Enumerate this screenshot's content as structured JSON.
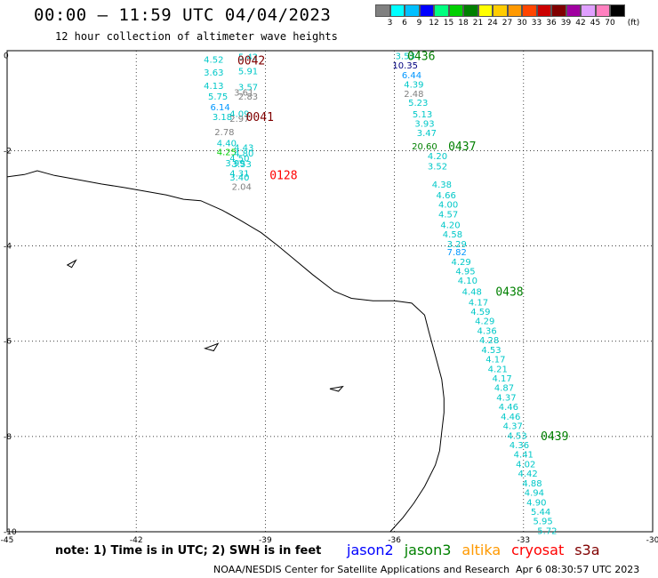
{
  "title": "00:00 – 11:59 UTC 04/04/2023",
  "subtitle": "12 hour collection of altimeter wave heights",
  "colorbar": {
    "unit": "(ft)",
    "labels": [
      "3",
      "6",
      "9",
      "12",
      "15",
      "18",
      "21",
      "24",
      "27",
      "30",
      "33",
      "36",
      "39",
      "42",
      "45",
      "70"
    ],
    "colors": [
      "#808080",
      "#00ffff",
      "#00bfff",
      "#0000ff",
      "#00ff7f",
      "#00d000",
      "#008000",
      "#ffff00",
      "#ffcc00",
      "#ff9900",
      "#ff4500",
      "#cc0000",
      "#800000",
      "#a000a0",
      "#e0a0ff",
      "#ff80c0",
      "#000000"
    ]
  },
  "axes": {
    "lon_labels": [
      "-45",
      "-42",
      "-39",
      "-36",
      "-33",
      "-30"
    ],
    "lat_labels": [
      "0",
      "-2",
      "-4",
      "-6",
      "-8",
      "-10"
    ],
    "lon_range": [
      -45,
      -30
    ],
    "lat_range": [
      -10,
      0.1
    ]
  },
  "chart_data": {
    "type": "scatter",
    "passes": [
      {
        "label": "0042",
        "label_color": "#800000",
        "label_at": [
          -39.65,
          -0.1
        ],
        "points": [
          {
            "lon": -40.2,
            "lat": -0.08,
            "v": "4.52",
            "c": "#00c8c8"
          },
          {
            "lon": -39.4,
            "lat": -0.02,
            "v": "5.42",
            "c": "#00c8c8"
          },
          {
            "lon": -40.2,
            "lat": -0.35,
            "v": "3.63",
            "c": "#00c8c8"
          },
          {
            "lon": -39.4,
            "lat": -0.32,
            "v": "5.91",
            "c": "#00c8c8"
          },
          {
            "lon": -40.2,
            "lat": -0.63,
            "v": "4.13",
            "c": "#00c8c8"
          },
          {
            "lon": -39.4,
            "lat": -0.66,
            "v": "3.57",
            "c": "#00c8c8"
          },
          {
            "lon": -39.5,
            "lat": -0.77,
            "v": "3.61",
            "c": "#808080"
          },
          {
            "lon": -39.4,
            "lat": -0.85,
            "v": "2.83",
            "c": "#808080"
          },
          {
            "lon": -40.1,
            "lat": -0.85,
            "v": "5.75",
            "c": "#00c8c8"
          },
          {
            "lon": -40.05,
            "lat": -1.08,
            "v": "6.14",
            "c": "#0096ff"
          },
          {
            "lon": -39.6,
            "lat": -1.22,
            "v": "4.09",
            "c": "#00c8c8"
          },
          {
            "lon": -40.0,
            "lat": -1.28,
            "v": "3.18",
            "c": "#00c8c8"
          },
          {
            "lon": -39.6,
            "lat": -1.32,
            "v": "2.97",
            "c": "#808080"
          }
        ]
      },
      {
        "label": "0041",
        "label_color": "#800000",
        "label_at": [
          -39.45,
          -1.28
        ],
        "points": [
          {
            "lon": -39.95,
            "lat": -1.6,
            "v": "2.78",
            "c": "#808080"
          },
          {
            "lon": -39.9,
            "lat": -1.83,
            "v": "4.40",
            "c": "#00c8c8"
          },
          {
            "lon": -39.5,
            "lat": -1.93,
            "v": "4.43",
            "c": "#00c8c8"
          },
          {
            "lon": -39.9,
            "lat": -2.02,
            "v": "4.25",
            "c": "#00d000"
          },
          {
            "lon": -39.5,
            "lat": -2.05,
            "v": "4.80",
            "c": "#00c8c8"
          },
          {
            "lon": -39.6,
            "lat": -2.15,
            "v": "4.50",
            "c": "#00c8c8"
          },
          {
            "lon": -39.7,
            "lat": -2.25,
            "v": "3.99",
            "c": "#00c8c8"
          },
          {
            "lon": -39.55,
            "lat": -2.27,
            "v": "3.53",
            "c": "#00c8c8"
          }
        ]
      },
      {
        "label": "0128",
        "label_color": "#ff0000",
        "label_at": [
          -38.9,
          -2.5
        ],
        "points": [
          {
            "lon": -39.6,
            "lat": -2.47,
            "v": "4.31",
            "c": "#00c8c8"
          },
          {
            "lon": -39.6,
            "lat": -2.55,
            "v": "3.40",
            "c": "#00c8c8"
          },
          {
            "lon": -39.55,
            "lat": -2.75,
            "v": "2.04",
            "c": "#808080"
          }
        ]
      },
      {
        "label": "0436",
        "label_color": "#008000",
        "label_at": [
          -35.7,
          0.0
        ],
        "points": [
          {
            "lon": -35.75,
            "lat": -0.0,
            "v": "3.53",
            "c": "#00c8c8"
          },
          {
            "lon": -35.75,
            "lat": -0.2,
            "v": "10.35",
            "c": "#00007f"
          },
          {
            "lon": -35.6,
            "lat": -0.4,
            "v": "6.44",
            "c": "#0096ff"
          },
          {
            "lon": -35.55,
            "lat": -0.6,
            "v": "4.39",
            "c": "#00c8c8"
          },
          {
            "lon": -35.55,
            "lat": -0.8,
            "v": "2.48",
            "c": "#808080"
          },
          {
            "lon": -35.45,
            "lat": -0.98,
            "v": "5.23",
            "c": "#00c8c8"
          },
          {
            "lon": -35.35,
            "lat": -1.23,
            "v": "5.13",
            "c": "#00c8c8"
          },
          {
            "lon": -35.3,
            "lat": -1.42,
            "v": "3.93",
            "c": "#00c8c8"
          },
          {
            "lon": -35.25,
            "lat": -1.62,
            "v": "3.47",
            "c": "#00c8c8"
          }
        ]
      },
      {
        "label": "0437",
        "label_color": "#008000",
        "label_at": [
          -34.75,
          -1.9
        ],
        "points": [
          {
            "lon": -35.3,
            "lat": -1.9,
            "v": "20.60",
            "c": "#008000"
          },
          {
            "lon": -35.0,
            "lat": -2.1,
            "v": "4.20",
            "c": "#00c8c8"
          },
          {
            "lon": -35.0,
            "lat": -2.32,
            "v": "3.52",
            "c": "#00c8c8"
          },
          {
            "lon": -34.9,
            "lat": -2.7,
            "v": "4.38",
            "c": "#00c8c8"
          },
          {
            "lon": -34.8,
            "lat": -2.92,
            "v": "4.66",
            "c": "#00c8c8"
          },
          {
            "lon": -34.75,
            "lat": -3.12,
            "v": "4.00",
            "c": "#00c8c8"
          },
          {
            "lon": -34.75,
            "lat": -3.33,
            "v": "4.57",
            "c": "#00c8c8"
          },
          {
            "lon": -34.7,
            "lat": -3.55,
            "v": "4.20",
            "c": "#00c8c8"
          },
          {
            "lon": -34.65,
            "lat": -3.75,
            "v": "4.58",
            "c": "#00c8c8"
          },
          {
            "lon": -34.55,
            "lat": -3.95,
            "v": "3.29",
            "c": "#00c8c8"
          },
          {
            "lon": -34.55,
            "lat": -4.12,
            "v": "7.82",
            "c": "#0096ff"
          },
          {
            "lon": -34.45,
            "lat": -4.32,
            "v": "4.29",
            "c": "#00c8c8"
          },
          {
            "lon": -34.35,
            "lat": -4.52,
            "v": "4.95",
            "c": "#00c8c8"
          },
          {
            "lon": -34.3,
            "lat": -4.72,
            "v": "4.10",
            "c": "#00c8c8"
          }
        ]
      },
      {
        "label": "0438",
        "label_color": "#008000",
        "label_at": [
          -33.65,
          -4.95
        ],
        "points": [
          {
            "lon": -34.2,
            "lat": -4.95,
            "v": "4.48",
            "c": "#00c8c8"
          },
          {
            "lon": -34.05,
            "lat": -5.17,
            "v": "4.17",
            "c": "#00c8c8"
          },
          {
            "lon": -34.0,
            "lat": -5.37,
            "v": "4.59",
            "c": "#00c8c8"
          },
          {
            "lon": -33.9,
            "lat": -5.57,
            "v": "4.29",
            "c": "#00c8c8"
          },
          {
            "lon": -33.85,
            "lat": -5.77,
            "v": "4.36",
            "c": "#00c8c8"
          },
          {
            "lon": -33.8,
            "lat": -5.97,
            "v": "4.28",
            "c": "#00c8c8"
          },
          {
            "lon": -33.75,
            "lat": -6.17,
            "v": "4.53",
            "c": "#00c8c8"
          },
          {
            "lon": -33.65,
            "lat": -6.37,
            "v": "4.17",
            "c": "#00c8c8"
          },
          {
            "lon": -33.6,
            "lat": -6.57,
            "v": "4.21",
            "c": "#00c8c8"
          },
          {
            "lon": -33.5,
            "lat": -6.77,
            "v": "4.17",
            "c": "#00c8c8"
          },
          {
            "lon": -33.45,
            "lat": -6.97,
            "v": "4.87",
            "c": "#00c8c8"
          },
          {
            "lon": -33.4,
            "lat": -7.17,
            "v": "4.37",
            "c": "#00c8c8"
          },
          {
            "lon": -33.35,
            "lat": -7.37,
            "v": "4.46",
            "c": "#00c8c8"
          },
          {
            "lon": -33.3,
            "lat": -7.57,
            "v": "4.46",
            "c": "#00c8c8"
          },
          {
            "lon": -33.25,
            "lat": -7.77,
            "v": "4.37",
            "c": "#00c8c8"
          }
        ]
      },
      {
        "label": "0439",
        "label_color": "#008000",
        "label_at": [
          -32.6,
          -7.98
        ],
        "points": [
          {
            "lon": -33.15,
            "lat": -7.97,
            "v": "4.53",
            "c": "#00c8c8"
          },
          {
            "lon": -33.1,
            "lat": -8.17,
            "v": "4.36",
            "c": "#00c8c8"
          },
          {
            "lon": -33.0,
            "lat": -8.37,
            "v": "4.41",
            "c": "#00c8c8"
          },
          {
            "lon": -32.95,
            "lat": -8.57,
            "v": "4.02",
            "c": "#00c8c8"
          },
          {
            "lon": -32.9,
            "lat": -8.77,
            "v": "4.42",
            "c": "#00c8c8"
          },
          {
            "lon": -32.8,
            "lat": -8.97,
            "v": "4.88",
            "c": "#00c8c8"
          },
          {
            "lon": -32.75,
            "lat": -9.17,
            "v": "4.94",
            "c": "#00c8c8"
          },
          {
            "lon": -32.7,
            "lat": -9.37,
            "v": "4.90",
            "c": "#00c8c8"
          },
          {
            "lon": -32.6,
            "lat": -9.57,
            "v": "5.44",
            "c": "#00c8c8"
          },
          {
            "lon": -32.55,
            "lat": -9.77,
            "v": "5.95",
            "c": "#00c8c8"
          },
          {
            "lon": -32.45,
            "lat": -9.97,
            "v": "5.72",
            "c": "#00c8c8"
          }
        ]
      }
    ]
  },
  "coastline": [
    [
      -45.0,
      -2.55
    ],
    [
      -44.6,
      -2.5
    ],
    [
      -44.3,
      -2.42
    ],
    [
      -43.9,
      -2.52
    ],
    [
      -43.4,
      -2.6
    ],
    [
      -42.8,
      -2.7
    ],
    [
      -42.3,
      -2.77
    ],
    [
      -41.8,
      -2.85
    ],
    [
      -41.3,
      -2.93
    ],
    [
      -40.9,
      -3.02
    ],
    [
      -40.5,
      -3.05
    ],
    [
      -40.0,
      -3.25
    ],
    [
      -39.6,
      -3.45
    ],
    [
      -39.1,
      -3.72
    ],
    [
      -38.7,
      -4.0
    ],
    [
      -38.3,
      -4.3
    ],
    [
      -37.9,
      -4.6
    ],
    [
      -37.4,
      -4.95
    ],
    [
      -37.0,
      -5.1
    ],
    [
      -36.5,
      -5.15
    ],
    [
      -36.0,
      -5.15
    ],
    [
      -35.6,
      -5.2
    ],
    [
      -35.3,
      -5.45
    ],
    [
      -35.2,
      -5.8
    ],
    [
      -35.05,
      -6.3
    ],
    [
      -34.9,
      -6.8
    ],
    [
      -34.85,
      -7.2
    ],
    [
      -34.85,
      -7.5
    ],
    [
      -34.9,
      -7.9
    ],
    [
      -34.95,
      -8.3
    ],
    [
      -35.05,
      -8.6
    ],
    [
      -35.3,
      -9.05
    ],
    [
      -35.55,
      -9.4
    ],
    [
      -35.8,
      -9.7
    ],
    [
      -36.1,
      -10.0
    ]
  ],
  "islands": [
    [
      [
        -43.6,
        -4.4
      ],
      [
        -43.4,
        -4.3
      ],
      [
        -43.5,
        -4.45
      ]
    ],
    [
      [
        -40.4,
        -6.15
      ],
      [
        -40.1,
        -6.05
      ],
      [
        -40.2,
        -6.2
      ]
    ],
    [
      [
        -37.5,
        -7.0
      ],
      [
        -37.2,
        -6.95
      ],
      [
        -37.3,
        -7.05
      ]
    ]
  ],
  "note": "note: 1) Time is in UTC; 2) SWH is in feet",
  "legend": [
    {
      "name": "jason2",
      "color": "#0000ff"
    },
    {
      "name": "jason3",
      "color": "#008000"
    },
    {
      "name": "altika",
      "color": "#ff9900"
    },
    {
      "name": "cryosat",
      "color": "#ff0000"
    },
    {
      "name": "s3a",
      "color": "#800000"
    }
  ],
  "credit": "NOAA/NESDIS Center for Satellite Applications and Research",
  "credit_time": "Apr  6 08:30:57 UTC 2023"
}
